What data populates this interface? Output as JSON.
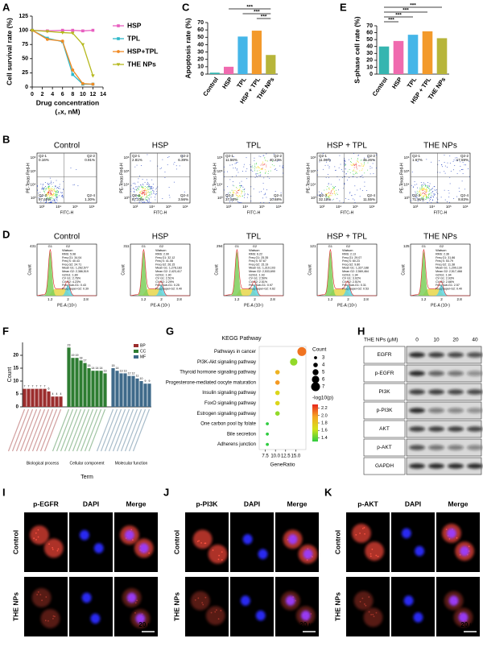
{
  "panel_labels": [
    "A",
    "B",
    "C",
    "D",
    "E",
    "F",
    "G",
    "H",
    "I",
    "J",
    "K"
  ],
  "chart_data": [
    {
      "type": "line",
      "ylabel": "Cell survival rate (%)",
      "xlabel": "Drug concentration",
      "xlabel_unit": "(₂x, nM)",
      "x": [
        0,
        3,
        6,
        8,
        10,
        12
      ],
      "xlim": [
        0,
        14
      ],
      "xticks": [
        0,
        2,
        4,
        6,
        8,
        10,
        12,
        14
      ],
      "ylim": [
        0,
        125
      ],
      "yticks": [
        0,
        25,
        50,
        75,
        100,
        125
      ],
      "legend": "right",
      "series": [
        {
          "name": "HSP",
          "color": "#e85fc0",
          "marker": "square",
          "values": [
            100,
            99,
            100,
            100,
            99,
            100
          ]
        },
        {
          "name": "TPL",
          "color": "#2eb8c9",
          "marker": "square",
          "values": [
            100,
            86,
            80,
            22,
            5,
            5
          ]
        },
        {
          "name": "HSP+TPL",
          "color": "#f08a24",
          "marker": "circle",
          "values": [
            100,
            84,
            81,
            30,
            6,
            5
          ]
        },
        {
          "name": "THE NPs",
          "color": "#b5b81c",
          "marker": "triangle",
          "values": [
            100,
            98,
            96,
            95,
            75,
            20
          ]
        }
      ]
    },
    {
      "type": "bar",
      "ylabel": "Apoptosis rate (%)",
      "categories": [
        "Control",
        "HSP",
        "TPL",
        "HSP + TPL",
        "THE NPs"
      ],
      "values": [
        2,
        10,
        51,
        59,
        26
      ],
      "colors": [
        "#36b5b0",
        "#f06aaf",
        "#45b6e8",
        "#f39a2b",
        "#b7b53a"
      ],
      "ylim": [
        0,
        70
      ],
      "yticks": [
        0,
        10,
        20,
        30,
        40,
        50,
        60,
        70
      ],
      "annotations": [
        "***",
        "***",
        "***"
      ]
    },
    {
      "type": "bar",
      "ylabel": "S-phase cell rate (%)",
      "categories": [
        "Control",
        "HSP",
        "TPL",
        "HSP + TPL",
        "THE NPs"
      ],
      "values": [
        40,
        48,
        57,
        62,
        52
      ],
      "colors": [
        "#36b5b0",
        "#f06aaf",
        "#45b6e8",
        "#f39a2b",
        "#b7b53a"
      ],
      "ylim": [
        0,
        70
      ],
      "yticks": [
        0,
        10,
        20,
        30,
        40,
        50,
        60,
        70
      ],
      "annotations": [
        "***",
        "***",
        "***",
        "***"
      ]
    },
    {
      "type": "go_bar",
      "ylabel": "Count",
      "xlabel": "Term",
      "ylim": [
        0,
        25
      ],
      "yticks": [
        0,
        5,
        10,
        15,
        20
      ],
      "groups": [
        {
          "name": "BP",
          "label": "Biological process",
          "color": "#9b2d2d",
          "values": [
            7,
            7,
            7,
            7,
            7,
            7,
            6,
            4,
            4,
            4
          ]
        },
        {
          "name": "CC",
          "label": "Cellular component",
          "color": "#2e7d32",
          "values": [
            23,
            19,
            19,
            18,
            17,
            15,
            14,
            14,
            14,
            13
          ]
        },
        {
          "name": "MF",
          "label": "Molecular function",
          "color": "#3f6a8a",
          "values": [
            15,
            14,
            13,
            13,
            12,
            12,
            11,
            10,
            9,
            9
          ]
        }
      ]
    },
    {
      "type": "dot",
      "title": "KEGG Pathway",
      "xlabel": "GeneRatio",
      "categories": [
        "Pathways in cancer",
        "PI3K-Akt signaling pathway",
        "Thyroid hormone signaling pathway",
        "Progesterone-mediated oocyte maturation",
        "Insulin signaling pathway",
        "FoxO signaling pathway",
        "Estrogen signaling pathway",
        "One carbon pool by folate",
        "Bile secretion",
        "Adherens junction"
      ],
      "values": [
        16.5,
        14.5,
        10.5,
        10.5,
        10.5,
        10.5,
        10.5,
        8,
        8,
        8
      ],
      "sizes": [
        7,
        6,
        4,
        4,
        4,
        4,
        4,
        3,
        3,
        3
      ],
      "pvalues": [
        2.1,
        1.5,
        1.9,
        2.0,
        1.7,
        1.7,
        1.5,
        1.3,
        1.3,
        1.3
      ],
      "xlim": [
        6,
        17.5
      ],
      "xticks": [
        7.5,
        {
          "value": 10,
          "label": "10.0"
        },
        12.5,
        {
          "value": 15,
          "label": "15.0"
        }
      ],
      "size_title": "Count",
      "size_ticks": [
        3,
        4,
        5,
        6,
        7
      ],
      "color_title": "-log10(p)",
      "clim": [
        1.3,
        2.3
      ],
      "color_ticks": [
        2.2,
        {
          "value": 2,
          "label": "2.0"
        },
        1.8,
        1.6,
        1.4
      ],
      "colormap": [
        "#2ecc40",
        "#d4e21a",
        "#f5a623",
        "#e8261c"
      ]
    }
  ],
  "flow": {
    "ylabel": "PE-Texas Red-H",
    "xlabel": "FITC-H",
    "xticks": [
      "10³",
      "10⁴",
      "10⁵",
      "10⁶"
    ],
    "yticks": [
      "10³",
      "10⁴",
      "10⁵",
      "10⁶"
    ],
    "panels": [
      {
        "title": "Control",
        "quadrants": [
          {
            "name": "Q2-1",
            "value": "0.16%"
          },
          {
            "name": "Q2-2",
            "value": "0.91%"
          },
          {
            "name": "Q2-3",
            "value": "97.62%"
          },
          {
            "name": "Q2-4",
            "value": "1.30%"
          }
        ]
      },
      {
        "title": "HSP",
        "quadrants": [
          {
            "name": "Q2-1",
            "value": "2.81%"
          },
          {
            "name": "Q2-2",
            "value": "6.39%"
          },
          {
            "name": "Q2-3",
            "value": "87.23%"
          },
          {
            "name": "Q2-4",
            "value": "3.56%"
          }
        ]
      },
      {
        "title": "TPL",
        "quadrants": [
          {
            "name": "Q2-1",
            "value": "11.56%"
          },
          {
            "name": "Q2-2",
            "value": "40.23%"
          },
          {
            "name": "Q2-3",
            "value": "37.53%"
          },
          {
            "name": "Q2-4",
            "value": "10.68%"
          }
        ]
      },
      {
        "title": "HSP + TPL",
        "quadrants": [
          {
            "name": "Q2-1",
            "value": "11.06%"
          },
          {
            "name": "Q2-2",
            "value": "45.26%"
          },
          {
            "name": "Q2-3",
            "value": "32.13%"
          },
          {
            "name": "Q2-4",
            "value": "11.55%"
          }
        ]
      },
      {
        "title": "THE NPs",
        "quadrants": [
          {
            "name": "Q2-1",
            "value": "1.67%"
          },
          {
            "name": "Q2-2",
            "value": "17.59%"
          },
          {
            "name": "Q2-3",
            "value": "71.91%"
          },
          {
            "name": "Q2-4",
            "value": "8.83%"
          }
        ]
      }
    ]
  },
  "cycle": {
    "ylabel": "Count",
    "xlabel": "PE-A (10⁶)",
    "method": "Watson",
    "peaks": [
      "G1",
      "G2"
    ],
    "xticks": [
      "1.2",
      "2",
      "2.8"
    ],
    "panels": [
      {
        "title": "Control",
        "ymax": "431",
        "stats": [
          "RMS: 5.98",
          "Freq G1: 34.04",
          "Freq S: 40.43",
          "Freq G2: 24.71",
          "Mean G1: 1,262,577",
          "Mean G2: 2,386,519",
          "G2/G1: 1.89",
          "CV G1: 2.76%",
          "CV G2: 4.23%",
          "Freq Sub-G1: 0.43",
          "Freq Super-G2: 0.39"
        ]
      },
      {
        "title": "HSP",
        "ymax": "311",
        "stats": [
          "RMS: 2.90",
          "Freq G1: 32.12",
          "Freq S: 41.08",
          "Freq G2: 26.15",
          "Mean G1: 1,278,183",
          "Mean G2: 2,423,417",
          "G2/G1: 1.90",
          "CV G1: 2.51%",
          "CV G2: 2.29%",
          "Freq Sub-G1: 0.25",
          "Freq Super-G2: 0.40"
        ]
      },
      {
        "title": "TPL",
        "ymax": "294",
        "stats": [
          "RMS: 6.22",
          "Freq G1: 25.35",
          "Freq S: 57.67",
          "Freq G2: 15.19",
          "Mean G1: 1,310,103",
          "Mean G2: 2,533,690",
          "G2/G1: 1.93",
          "CV G1: 2.50%",
          "CV G2: 2.51%",
          "Freq Sub-G1: 0.97",
          "Freq Super-G2: 0.62"
        ]
      },
      {
        "title": "HSP + TPL",
        "ymax": "121",
        "stats": [
          "RMS: 2.13",
          "Freq G1: 29.07",
          "Freq S: 60.23",
          "Freq G2: 9.80",
          "Mean G1: 1,327,188",
          "Mean G2: 2,569,464",
          "G2/G1: 1.94",
          "CV G1: 3.02%",
          "CV G2: 2.51%",
          "Freq Sub-G1: 0.31",
          "Freq Super-G2: 0.53"
        ]
      },
      {
        "title": "THE NPs",
        "ymax": "125",
        "stats": [
          "RMS: 2.36",
          "Freq G1: 31.86",
          "Freq S: 53.79",
          "Freq G2: 11.38",
          "Mean G1: 1,299,130",
          "Mean G2: 2,517,468",
          "G2/G1: 1.94",
          "CV G1: 2.93%",
          "CV G2: 2.66%",
          "Freq Sub-G1: 2.57",
          "Freq Super-G2: 0.40"
        ]
      }
    ]
  },
  "western": {
    "header": "THE NPs (μM)",
    "doses": [
      "0",
      "10",
      "20",
      "40"
    ],
    "proteins": [
      "EGFR",
      "p-EGFR",
      "PI3K",
      "p-PI3K",
      "AKT",
      "p-AKT",
      "GAPDH"
    ]
  },
  "microscopy": {
    "rows": [
      "Control",
      "THE NPs"
    ],
    "scale": "20 μm",
    "panels": [
      {
        "channels": [
          "p-EGFR",
          "DAPI",
          "Merge"
        ]
      },
      {
        "channels": [
          "p-PI3K",
          "DAPI",
          "Merge"
        ]
      },
      {
        "channels": [
          "p-AKT",
          "DAPI",
          "Merge"
        ]
      }
    ]
  }
}
